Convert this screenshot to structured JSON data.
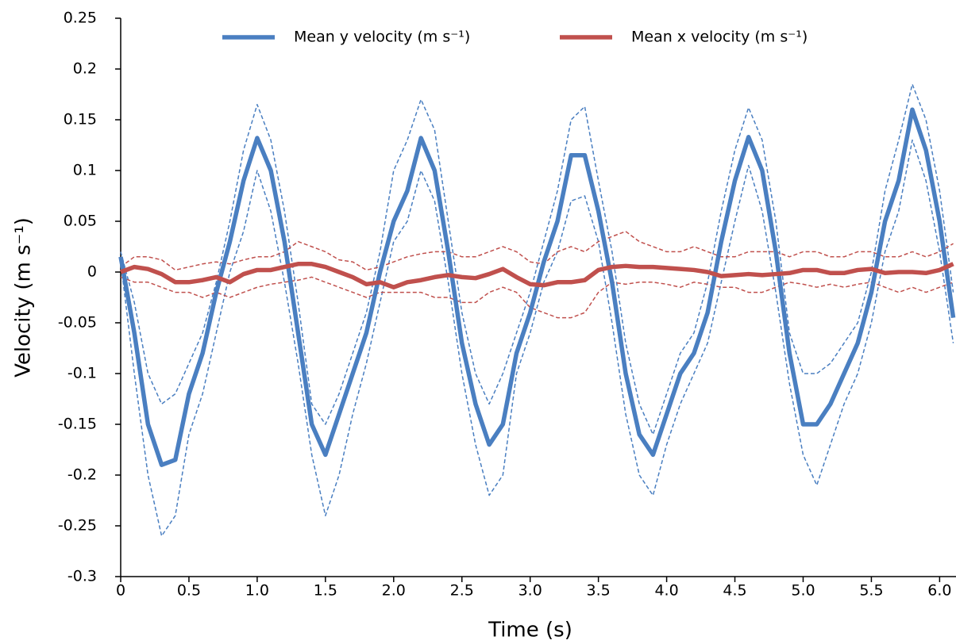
{
  "chart_data": {
    "type": "line",
    "x_label": "Time (s)",
    "y_label": "Velocity (m s⁻¹)",
    "x": [
      0,
      0.1,
      0.2,
      0.3,
      0.4,
      0.5,
      0.6,
      0.7,
      0.8,
      0.9,
      1,
      1.1,
      1.2,
      1.3,
      1.4,
      1.5,
      1.6,
      1.7,
      1.8,
      1.9,
      2,
      2.1,
      2.2,
      2.3,
      2.4,
      2.5,
      2.6,
      2.7,
      2.8,
      2.9,
      3,
      3.1,
      3.2,
      3.3,
      3.4,
      3.5,
      3.6,
      3.7,
      3.8,
      3.9,
      4,
      4.1,
      4.2,
      4.3,
      4.4,
      4.5,
      4.6,
      4.7,
      4.8,
      4.9,
      5,
      5.1,
      5.2,
      5.3,
      5.4,
      5.5,
      5.6,
      5.7,
      5.8,
      5.9,
      6,
      6.1
    ],
    "series": [
      {
        "color": "#4a7fc1",
        "dashed": true,
        "values": [
          0.02,
          -0.03,
          -0.1,
          -0.13,
          -0.12,
          -0.09,
          -0.06,
          -0.01,
          0.05,
          0.12,
          0.165,
          0.13,
          0.06,
          -0.03,
          -0.13,
          -0.15,
          -0.12,
          -0.08,
          -0.04,
          0.02,
          0.1,
          0.13,
          0.17,
          0.14,
          0.05,
          -0.04,
          -0.1,
          -0.13,
          -0.1,
          -0.06,
          -0.02,
          0.03,
          0.08,
          0.15,
          0.163,
          0.09,
          0.02,
          -0.07,
          -0.13,
          -0.16,
          -0.12,
          -0.08,
          -0.06,
          -0.01,
          0.06,
          0.12,
          0.162,
          0.13,
          0.05,
          -0.06,
          -0.1,
          -0.1,
          -0.09,
          -0.07,
          -0.05,
          0.0,
          0.08,
          0.13,
          0.185,
          0.15,
          0.08,
          -0.02
        ]
      },
      {
        "color": "#4a7fc1",
        "dashed": true,
        "values": [
          0.01,
          -0.1,
          -0.2,
          -0.26,
          -0.24,
          -0.16,
          -0.12,
          -0.06,
          0.0,
          0.04,
          0.1,
          0.06,
          -0.01,
          -0.09,
          -0.18,
          -0.24,
          -0.2,
          -0.14,
          -0.09,
          -0.03,
          0.03,
          0.05,
          0.1,
          0.07,
          -0.01,
          -0.1,
          -0.17,
          -0.22,
          -0.2,
          -0.1,
          -0.06,
          -0.01,
          0.02,
          0.07,
          0.075,
          0.03,
          -0.05,
          -0.14,
          -0.2,
          -0.22,
          -0.17,
          -0.13,
          -0.1,
          -0.07,
          -0.01,
          0.05,
          0.105,
          0.06,
          -0.02,
          -0.11,
          -0.18,
          -0.21,
          -0.17,
          -0.13,
          -0.1,
          -0.05,
          0.02,
          0.06,
          0.13,
          0.09,
          0.02,
          -0.07
        ]
      },
      {
        "color": "#c0504d",
        "dashed": true,
        "values": [
          0.005,
          0.015,
          0.015,
          0.012,
          0.002,
          0.005,
          0.008,
          0.01,
          0.008,
          0.012,
          0.015,
          0.015,
          0.02,
          0.03,
          0.025,
          0.02,
          0.012,
          0.01,
          0.002,
          0.005,
          0.01,
          0.015,
          0.018,
          0.02,
          0.02,
          0.015,
          0.015,
          0.02,
          0.025,
          0.02,
          0.01,
          0.008,
          0.02,
          0.025,
          0.02,
          0.03,
          0.035,
          0.04,
          0.03,
          0.025,
          0.02,
          0.02,
          0.025,
          0.02,
          0.015,
          0.015,
          0.02,
          0.02,
          0.02,
          0.015,
          0.02,
          0.02,
          0.015,
          0.015,
          0.02,
          0.02,
          0.015,
          0.015,
          0.02,
          0.015,
          0.02,
          0.028
        ]
      },
      {
        "color": "#c0504d",
        "dashed": true,
        "values": [
          -0.005,
          -0.01,
          -0.01,
          -0.015,
          -0.02,
          -0.02,
          -0.025,
          -0.02,
          -0.025,
          -0.02,
          -0.015,
          -0.012,
          -0.01,
          -0.008,
          -0.005,
          -0.01,
          -0.015,
          -0.02,
          -0.025,
          -0.02,
          -0.02,
          -0.02,
          -0.02,
          -0.025,
          -0.025,
          -0.03,
          -0.03,
          -0.02,
          -0.015,
          -0.02,
          -0.035,
          -0.04,
          -0.045,
          -0.045,
          -0.04,
          -0.02,
          -0.01,
          -0.012,
          -0.01,
          -0.01,
          -0.012,
          -0.015,
          -0.01,
          -0.012,
          -0.015,
          -0.015,
          -0.02,
          -0.02,
          -0.015,
          -0.01,
          -0.012,
          -0.015,
          -0.012,
          -0.015,
          -0.012,
          -0.01,
          -0.015,
          -0.02,
          -0.015,
          -0.02,
          -0.015,
          -0.01
        ]
      },
      {
        "name": "Mean y velocity (m s⁻¹)",
        "color": "#4a7fc1",
        "dashed": false,
        "values": [
          0.015,
          -0.06,
          -0.15,
          -0.19,
          -0.185,
          -0.12,
          -0.08,
          -0.02,
          0.03,
          0.09,
          0.132,
          0.1,
          0.03,
          -0.06,
          -0.15,
          -0.18,
          -0.14,
          -0.1,
          -0.06,
          0.0,
          0.05,
          0.08,
          0.132,
          0.1,
          0.02,
          -0.07,
          -0.13,
          -0.17,
          -0.15,
          -0.08,
          -0.04,
          0.01,
          0.05,
          0.115,
          0.115,
          0.06,
          -0.01,
          -0.1,
          -0.16,
          -0.18,
          -0.14,
          -0.1,
          -0.08,
          -0.04,
          0.03,
          0.09,
          0.133,
          0.1,
          0.02,
          -0.08,
          -0.15,
          -0.15,
          -0.13,
          -0.1,
          -0.07,
          -0.02,
          0.05,
          0.09,
          0.16,
          0.12,
          0.05,
          -0.045
        ]
      },
      {
        "name": "Mean x velocity (m s⁻¹)",
        "color": "#c0504d",
        "dashed": false,
        "values": [
          0,
          0.005,
          0.003,
          -0.002,
          -0.01,
          -0.01,
          -0.008,
          -0.005,
          -0.01,
          -0.002,
          0.002,
          0.002,
          0.005,
          0.008,
          0.008,
          0.005,
          0,
          -0.005,
          -0.012,
          -0.01,
          -0.015,
          -0.01,
          -0.008,
          -0.005,
          -0.003,
          -0.005,
          -0.006,
          -0.002,
          0.003,
          -0.005,
          -0.012,
          -0.013,
          -0.01,
          -0.01,
          -0.008,
          0.002,
          0.005,
          0.006,
          0.005,
          0.005,
          0.004,
          0.003,
          0.002,
          0,
          -0.004,
          -0.003,
          -0.002,
          -0.003,
          -0.002,
          -0.001,
          0.002,
          0.002,
          -0.001,
          -0.001,
          0.002,
          0.003,
          -0.001,
          0,
          0,
          -0.001,
          0.002,
          0.008
        ]
      }
    ],
    "xlim": [
      0,
      6.12
    ],
    "ylim": [
      -0.3,
      0.25
    ],
    "xticks": [
      0,
      0.5,
      {
        "value": 1,
        "label": "1.0"
      },
      1.5,
      {
        "value": 2,
        "label": "2.0"
      },
      2.5,
      {
        "value": 3,
        "label": "3.0"
      },
      3.5,
      {
        "value": 4,
        "label": "4.0"
      },
      4.5,
      {
        "value": 5,
        "label": "5.0"
      },
      5.5,
      {
        "value": 6,
        "label": "6.0"
      }
    ],
    "yticks": [
      0.25,
      0.2,
      0.15,
      0.1,
      0.05,
      0,
      -0.05,
      -0.1,
      -0.15,
      -0.2,
      -0.25,
      -0.3
    ],
    "grid": false,
    "legend": "top"
  }
}
